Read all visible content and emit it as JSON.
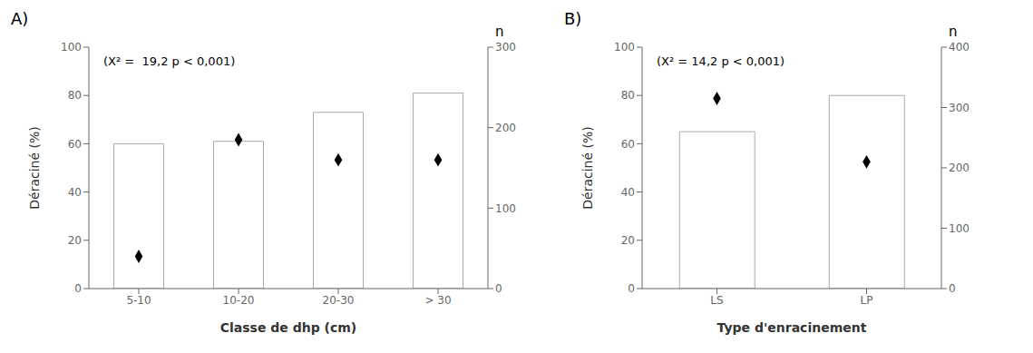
{
  "chart_data": [
    {
      "type": "bar",
      "title": "A)",
      "categories": [
        "5-10",
        "10-20",
        "20-30",
        "> 30"
      ],
      "series": [
        {
          "type": "bar",
          "color": "white",
          "values": [
            60,
            61,
            73,
            81
          ]
        },
        {
          "type": "scatter",
          "axis": "y2",
          "marker": "diamond",
          "color": "black",
          "values": [
            40,
            185,
            160,
            160
          ]
        }
      ],
      "xlabel": "Classe de dhp (cm)",
      "ylabel": "Déraciné (%)",
      "y2label": "n",
      "ylim": [
        0,
        100
      ],
      "yticks": [
        0,
        20,
        40,
        60,
        80,
        100
      ],
      "y2lim": [
        0,
        300
      ],
      "y2ticks": [
        0,
        100,
        200,
        300
      ],
      "annotations": [
        "(X² =  19,2 p < 0,001)"
      ]
    },
    {
      "type": "bar",
      "title": "B)",
      "categories": [
        "LS",
        "LP"
      ],
      "series": [
        {
          "type": "bar",
          "color": "white",
          "values": [
            65,
            80
          ]
        },
        {
          "type": "scatter",
          "axis": "y2",
          "marker": "diamond",
          "color": "black",
          "values": [
            315,
            210
          ]
        }
      ],
      "xlabel": "Type d'enracinement",
      "ylabel": "Déraciné (%)",
      "y2label": "n",
      "ylim": [
        0,
        100
      ],
      "yticks": [
        0,
        20,
        40,
        60,
        80,
        100
      ],
      "y2lim": [
        0,
        400
      ],
      "y2ticks": [
        0,
        100,
        200,
        300,
        400
      ],
      "annotations": [
        "(X² = 14,2 p < 0,001)"
      ]
    }
  ]
}
